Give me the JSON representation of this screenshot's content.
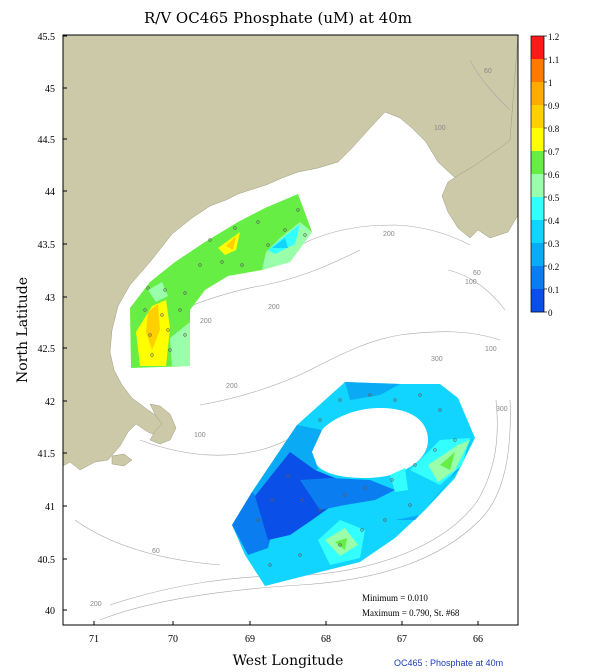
{
  "title": "R/V OC465 Phosphate (uM) at 40m",
  "x_axis": {
    "label": "West Longitude",
    "ticks": [
      "71",
      "70",
      "69",
      "68",
      "67",
      "66"
    ]
  },
  "y_axis": {
    "label": "North Latitude",
    "ticks": [
      "45.5",
      "45",
      "44.5",
      "44",
      "43.5",
      "43",
      "42.5",
      "42",
      "41.5",
      "41",
      "40.5",
      "40"
    ]
  },
  "colorbar": {
    "ticks": [
      "1.2",
      "1.1",
      "1",
      "0.9",
      "0.8",
      "0.7",
      "0.6",
      "0.5",
      "0.4",
      "0.3",
      "0.2",
      "0.1",
      "0"
    ],
    "colors": [
      "#ff1a1a",
      "#ff7a00",
      "#ffaa00",
      "#ffd000",
      "#ffff00",
      "#66ee44",
      "#99ffaa",
      "#33ffff",
      "#11d4ff",
      "#0aaaf5",
      "#0a7ef0",
      "#0a50e8"
    ]
  },
  "depth_contour_labels": [
    "60",
    "100",
    "200",
    "200",
    "200",
    "200",
    "300",
    "100",
    "100",
    "60",
    "100",
    "300",
    "60",
    "200"
  ],
  "stats": {
    "minimum": "Minimum = 0.010",
    "maximum": "Maximum = 0.790, St. #68"
  },
  "footer": "OC465 : Phosphate at 40m",
  "colors": {
    "land": "#cbc9a8",
    "isobath": "#a8a8a8",
    "footer_text": "#1a3cb8"
  }
}
